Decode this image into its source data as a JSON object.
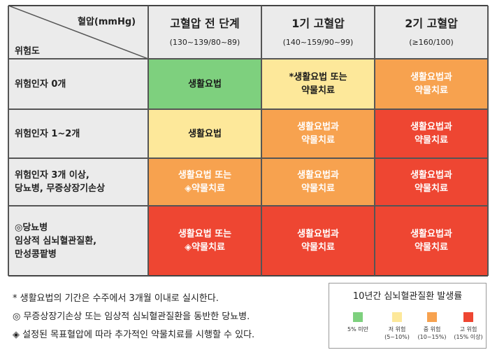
{
  "header": {
    "corner_top": "혈압(mmHg)",
    "corner_bottom": "위험도",
    "columns": [
      {
        "title": "고혈압 전 단계",
        "range": "(130~139/80~89)"
      },
      {
        "title": "1기 고혈압",
        "range": "(140~159/90~99)"
      },
      {
        "title": "2기 고혈압",
        "range": "(≥160/100)"
      }
    ]
  },
  "rows": [
    {
      "label": [
        "위험인자 0개"
      ],
      "cells": [
        [
          "생활요법"
        ],
        [
          "*생활요법 또는",
          "약물치료"
        ],
        [
          "생활요법과",
          "약물치료"
        ]
      ]
    },
    {
      "label": [
        "위험인자 1~2개"
      ],
      "cells": [
        [
          "생활요법"
        ],
        [
          "생활요법과",
          "약물치료"
        ],
        [
          "생활요법과",
          "약물치료"
        ]
      ]
    },
    {
      "label": [
        "위험인자 3개 이상,",
        "당뇨병, 무증상장기손상"
      ],
      "cells": [
        [
          "생활요법 또는",
          "◈약물치료"
        ],
        [
          "생활요법과",
          "약물치료"
        ],
        [
          "생활요법과",
          "약물치료"
        ]
      ]
    },
    {
      "label": [
        "◎당뇨병",
        "임상적 심뇌혈관질환,",
        "만성콩팥병"
      ],
      "cells": [
        [
          "생활요법 또는",
          "◈약물치료"
        ],
        [
          "생활요법과",
          "약물치료"
        ],
        [
          "생활요법과",
          "약물치료"
        ]
      ]
    }
  ],
  "risk_levels": [
    "low",
    "mid_low",
    "mid",
    "high"
  ],
  "colors": {
    "low": "#7ed07e",
    "mid_low": "#fde89a",
    "mid": "#f7a24f",
    "high": "#ee4632",
    "gray": "#ebebeb"
  },
  "cell_levels": [
    [
      "low",
      "mid_low",
      "mid"
    ],
    [
      "mid_low",
      "mid",
      "high"
    ],
    [
      "mid",
      "mid",
      "high"
    ],
    [
      "high",
      "high",
      "high"
    ]
  ],
  "notes": [
    "*  생활요법의 기간은 수주에서 3개월 이내로 실시한다.",
    "◎ 무증상장기손상 또는 임상적 심뇌혈관질환을 동반한 당뇨병.",
    "◈ 설정된 목표혈압에 따라 추가적인 약물치료를 시행할 수 있다."
  ],
  "legend": {
    "title": "10년간 심뇌혈관질환 발생률",
    "items": [
      {
        "level": "low",
        "lines": [
          "5% 미만"
        ]
      },
      {
        "level": "mid_low",
        "lines": [
          "저 위험",
          "(5~10%)"
        ]
      },
      {
        "level": "mid",
        "lines": [
          "중 위험",
          "(10~15%)"
        ]
      },
      {
        "level": "high",
        "lines": [
          "고 위험",
          "(15% 이상)"
        ]
      }
    ]
  }
}
